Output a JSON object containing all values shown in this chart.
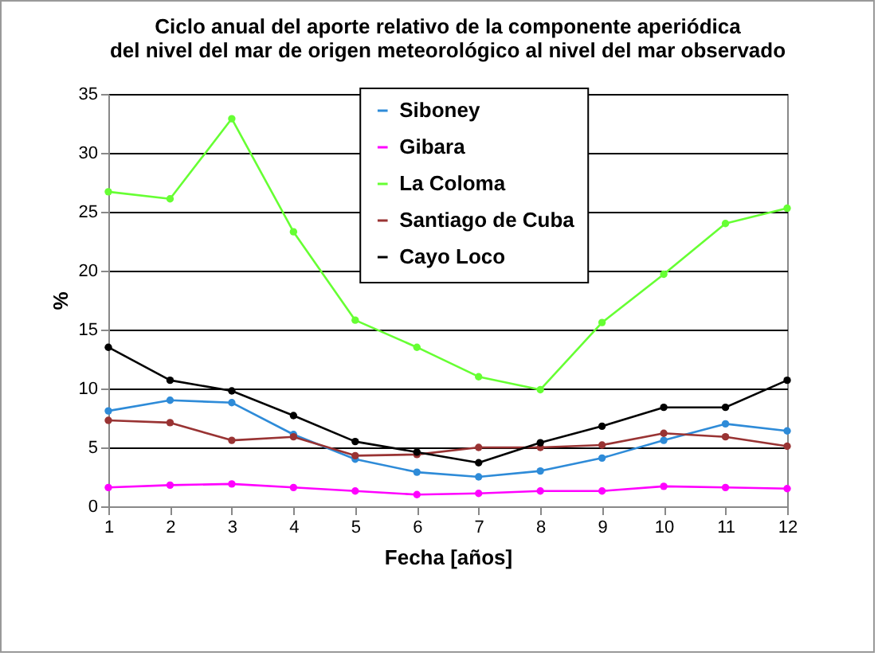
{
  "chart_data": {
    "type": "line",
    "title": "Ciclo anual del aporte relativo de la componente aperiódica\ndel nivel del mar  de origen meteorológico al nivel del mar observado",
    "xlabel": "Fecha [años]",
    "ylabel": "%",
    "x": [
      1,
      2,
      3,
      4,
      5,
      6,
      7,
      8,
      9,
      10,
      11,
      12
    ],
    "xlim": [
      1,
      12
    ],
    "xticks": [
      1,
      2,
      3,
      4,
      5,
      6,
      7,
      8,
      9,
      10,
      11,
      12
    ],
    "ylim": [
      0,
      35
    ],
    "yticks": [
      0,
      5,
      10,
      15,
      20,
      25,
      30,
      35
    ],
    "grid": "y",
    "legend": "top",
    "marker": "circle",
    "line_style": "solid",
    "series": [
      {
        "name": "Siboney",
        "color": "#2e8bd8",
        "values": [
          8.1,
          9.0,
          8.8,
          6.1,
          4.0,
          2.9,
          2.5,
          3.0,
          4.1,
          5.6,
          7.0,
          6.4
        ]
      },
      {
        "name": "Gibara",
        "color": "#ff00ff",
        "values": [
          1.6,
          1.8,
          1.9,
          1.6,
          1.3,
          1.0,
          1.1,
          1.3,
          1.3,
          1.7,
          1.6,
          1.5
        ]
      },
      {
        "name": "La Coloma",
        "color": "#66ff33",
        "values": [
          26.7,
          26.1,
          32.9,
          23.3,
          15.8,
          13.5,
          11.0,
          9.9,
          15.6,
          19.7,
          24.0,
          25.3
        ]
      },
      {
        "name": "Santiago de Cuba",
        "color": "#993333",
        "values": [
          7.3,
          7.1,
          5.6,
          5.9,
          4.3,
          4.4,
          5.0,
          5.0,
          5.2,
          6.2,
          5.9,
          5.1
        ]
      },
      {
        "name": "Cayo Loco",
        "color": "#000000",
        "values": [
          13.5,
          10.7,
          9.8,
          7.7,
          5.5,
          4.6,
          3.7,
          5.4,
          6.8,
          8.4,
          8.4,
          10.7
        ]
      }
    ]
  }
}
